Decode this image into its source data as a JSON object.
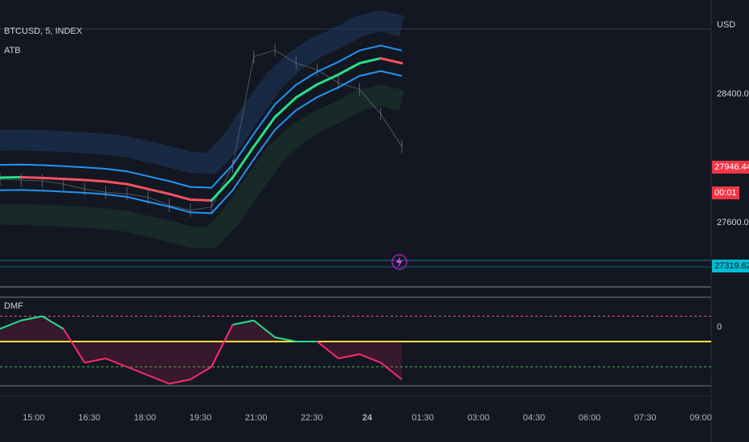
{
  "header": {
    "symbol": "BTCUSD, 5, INDEX",
    "indicator": "ATB"
  },
  "oscillator": {
    "name": "DMF",
    "zero_label": "0"
  },
  "price_axis": {
    "currency": "USD",
    "ticks": [
      "28400.00",
      "27600.00"
    ]
  },
  "price_tags": {
    "last": {
      "price": "27946.44",
      "countdown": "00:01",
      "color": "#f23645"
    },
    "level": {
      "price": "27319.62",
      "color": "#00bcd4"
    }
  },
  "time_axis": [
    "15:00",
    "16:30",
    "18:00",
    "19:30",
    "21:00",
    "22:30",
    "24",
    "01:30",
    "03:00",
    "04:30",
    "06:00",
    "07:30",
    "09:00"
  ],
  "colors": {
    "bull": "#26e08c",
    "bear": "#f7525f",
    "band": "#2196f3",
    "zero_line": "#ffeb3b",
    "osc_bear": "#ff2a6d"
  },
  "chart_data": [
    {
      "type": "line",
      "title": "BTCUSD, 5, INDEX",
      "ylabel": "USD",
      "ylim": [
        27250,
        28750
      ],
      "x": [
        "15:00",
        "15:30",
        "16:00",
        "16:30",
        "17:00",
        "17:30",
        "18:00",
        "18:30",
        "19:00",
        "19:30",
        "20:00",
        "20:30",
        "21:00",
        "21:30",
        "22:00",
        "22:30",
        "23:00",
        "23:30",
        "24",
        "00:30"
      ],
      "series": [
        {
          "values": [
            27860,
            27862,
            27858,
            27852,
            27845,
            27836,
            27820,
            27790,
            27760,
            27725,
            27720,
            27860,
            28050,
            28230,
            28350,
            28430,
            28490,
            28560,
            28590,
            28560
          ]
        },
        {
          "values": [
            27782,
            27784,
            27780,
            27774,
            27767,
            27758,
            27742,
            27712,
            27682,
            27647,
            27642,
            27782,
            27972,
            28152,
            28272,
            28352,
            28412,
            28482,
            28512,
            28482
          ]
        },
        {
          "values": [
            27938,
            27940,
            27936,
            27930,
            27923,
            27914,
            27898,
            27868,
            27838,
            27803,
            27798,
            27938,
            28128,
            28308,
            28428,
            28508,
            28568,
            28638,
            28668,
            28638
          ]
        },
        {
          "values": [
            27850,
            27845,
            27840,
            27820,
            27790,
            27770,
            27760,
            27740,
            27690,
            27660,
            27680,
            27930,
            28600,
            28640,
            28560,
            28520,
            28440,
            28400,
            28250,
            28050
          ]
        }
      ]
    },
    {
      "type": "line",
      "title": "DMF",
      "ylim": [
        -1.2,
        1.2
      ],
      "x": [
        "15:00",
        "15:30",
        "16:00",
        "16:30",
        "17:00",
        "17:30",
        "18:00",
        "18:30",
        "19:00",
        "19:30",
        "20:00",
        "20:30",
        "21:00",
        "21:30",
        "22:00",
        "22:30",
        "23:00",
        "23:30",
        "24",
        "00:30"
      ],
      "series": [
        {
          "values": [
            0.3,
            0.5,
            0.6,
            0.3,
            -0.5,
            -0.4,
            -0.6,
            -0.8,
            -1.0,
            -0.9,
            -0.6,
            0.4,
            0.5,
            0.1,
            0.0,
            0.0,
            -0.4,
            -0.3,
            -0.5,
            -0.9
          ]
        }
      ]
    }
  ]
}
